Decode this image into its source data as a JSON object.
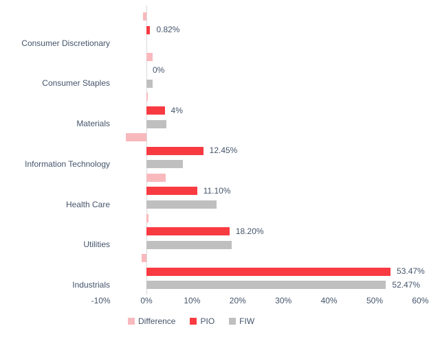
{
  "chart_data": {
    "type": "bar",
    "orientation": "horizontal",
    "title": "",
    "categories": [
      "Consumer Discretionary",
      "Consumer Staples",
      "Materials",
      "Information Technology",
      "Health Care",
      "Utilities",
      "Industrials"
    ],
    "series": [
      {
        "name": "Difference",
        "color": "#F8B9BD",
        "values": [
          -0.82,
          1.4,
          0.3,
          -4.45,
          4.2,
          0.5,
          -1.0
        ],
        "labels": [
          null,
          null,
          null,
          null,
          null,
          null,
          null
        ]
      },
      {
        "name": "PIO",
        "color": "#F83B41",
        "values": [
          0.82,
          0,
          4,
          12.45,
          11.1,
          18.2,
          53.47
        ],
        "labels": [
          "0.82%",
          "0%",
          "4%",
          "12.45%",
          "11.10%",
          "18.20%",
          "53.47%"
        ]
      },
      {
        "name": "FIW",
        "color": "#BFBFBF",
        "values": [
          0,
          1.4,
          4.3,
          8.0,
          15.3,
          18.7,
          52.47
        ],
        "labels": [
          null,
          null,
          null,
          null,
          null,
          null,
          "52.47%"
        ]
      }
    ],
    "x_axis": {
      "min": -10,
      "max": 60,
      "tick_values": [
        -10,
        0,
        10,
        20,
        30,
        40,
        50,
        60
      ],
      "tick_labels": [
        "-10%",
        "0%",
        "10%",
        "20%",
        "30%",
        "40%",
        "50%",
        "60%"
      ]
    },
    "legend": {
      "position": "bottom",
      "entries": [
        "Difference",
        "PIO",
        "FIW"
      ]
    },
    "gridlines": false,
    "colors": {
      "axis_line": "#D9D9D9",
      "text": "#44546A",
      "background": "#FFFFFF"
    }
  }
}
